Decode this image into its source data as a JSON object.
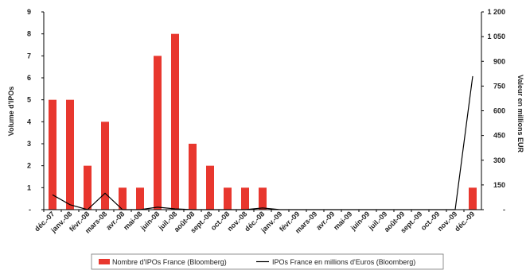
{
  "chart_data": {
    "type": "bar",
    "categories": [
      "déc.-07",
      "janv.-08",
      "févr.-08",
      "mars-08",
      "avr.-08",
      "mai-08",
      "juin-08",
      "juil.-08",
      "août-08",
      "sept.-08",
      "oct.-08",
      "nov.-08",
      "déc.-08",
      "janv.-09",
      "févr.-09",
      "mars-09",
      "avr.-09",
      "mai-09",
      "juin-09",
      "juil.-09",
      "août-09",
      "sept.-09",
      "oct.-09",
      "nov.-09",
      "déc.-09"
    ],
    "series": [
      {
        "name": "Nombre d'IPOs France (Bloomberg)",
        "type": "bar",
        "axis": "left",
        "color": "#e8372e",
        "values": [
          5,
          5,
          2,
          4,
          1,
          1,
          7,
          8,
          3,
          2,
          1,
          1,
          1,
          0,
          0,
          0,
          0,
          0,
          0,
          0,
          0,
          0,
          0,
          0,
          1
        ]
      },
      {
        "name": "IPOs France en millions d'Euros (Bloomberg)",
        "type": "line",
        "axis": "right",
        "color": "#000000",
        "values": [
          90,
          30,
          0,
          100,
          0,
          0,
          15,
          5,
          0,
          0,
          0,
          0,
          10,
          0,
          0,
          0,
          0,
          0,
          0,
          0,
          0,
          0,
          0,
          0,
          810
        ]
      }
    ],
    "ylabel": "Volume d'IPOs",
    "y2label": "Valeur en millions EUR",
    "ylim": [
      0,
      9
    ],
    "y2lim": [
      0,
      1200
    ],
    "yticks": [
      "-",
      "1",
      "2",
      "3",
      "4",
      "5",
      "6",
      "7",
      "8",
      "9"
    ],
    "y2ticks": [
      "-",
      "150",
      "300",
      "450",
      "600",
      "750",
      "900",
      "1 050",
      "1 200"
    ],
    "grid": false,
    "legend": "bottom"
  }
}
